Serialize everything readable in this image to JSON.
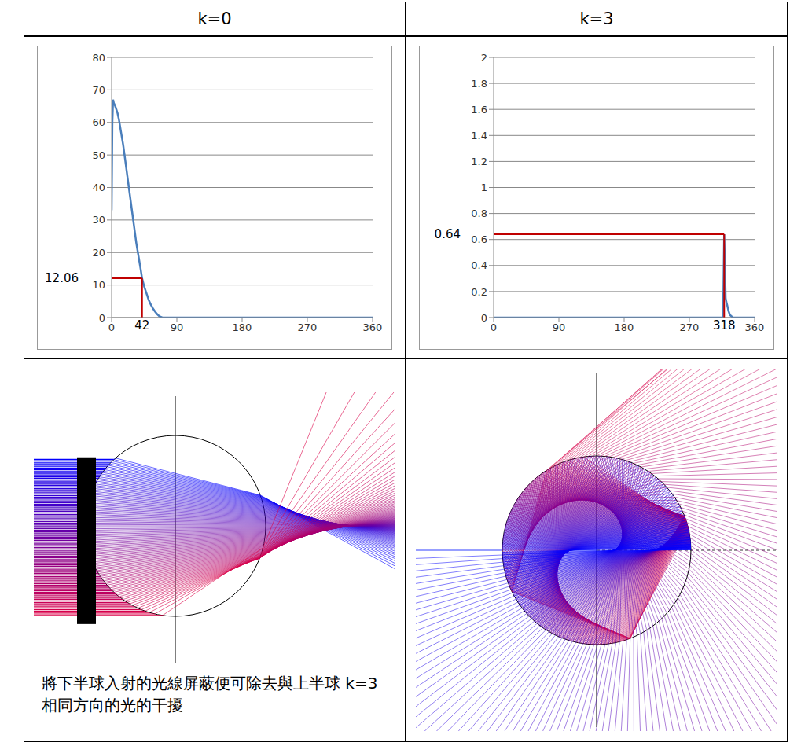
{
  "table": {
    "headers": [
      "k=0",
      "k=3"
    ],
    "caption": "將下半球入射的光線屏蔽便可除去與上半球 k=3 相同方向的光的干擾"
  },
  "chart_data": [
    {
      "type": "line",
      "x": [
        0,
        1,
        2,
        3,
        5,
        8,
        10,
        13,
        16,
        19,
        22,
        25,
        28,
        31,
        34,
        37,
        40,
        42,
        45,
        48,
        51,
        54,
        57,
        60,
        63,
        66,
        70,
        80,
        90,
        180,
        270,
        360
      ],
      "values": [
        33,
        60,
        67,
        66,
        65,
        63,
        61,
        57,
        53,
        48,
        43,
        38,
        33,
        28,
        23,
        19,
        15,
        12.06,
        9.5,
        7.5,
        5.5,
        4,
        2.8,
        1.8,
        1,
        0.4,
        0,
        0,
        0,
        0,
        0,
        0
      ],
      "color": "#4a7ebb",
      "xlim": [
        0,
        360
      ],
      "xticks": [
        0,
        90,
        180,
        270,
        360
      ],
      "ylim": [
        0,
        80
      ],
      "yticks": [
        0,
        10,
        20,
        30,
        40,
        50,
        60,
        70,
        80
      ],
      "grid": true,
      "annotations": [
        {
          "x": 42,
          "y": 12.06,
          "color": "#c00000"
        }
      ]
    },
    {
      "type": "line",
      "x": [
        0,
        90,
        180,
        270,
        300,
        310,
        314,
        316,
        317,
        318,
        319,
        320,
        321,
        322,
        324,
        326,
        330,
        340,
        360
      ],
      "values": [
        0,
        0,
        0,
        0,
        0,
        0,
        0,
        0,
        0.2,
        0.64,
        0.4,
        0.15,
        0.12,
        0.1,
        0.05,
        0.02,
        0,
        0,
        0
      ],
      "color": "#4a7ebb",
      "xlim": [
        0,
        360
      ],
      "xticks": [
        0,
        90,
        180,
        270,
        360
      ],
      "ylim": [
        0,
        2
      ],
      "yticks": [
        0,
        0.2,
        0.4,
        0.6,
        0.8,
        1,
        1.2,
        1.4,
        1.6,
        1.8,
        2
      ],
      "grid": true,
      "annotations": [
        {
          "x": 318,
          "y": 0.64,
          "color": "#c00000"
        }
      ]
    }
  ]
}
